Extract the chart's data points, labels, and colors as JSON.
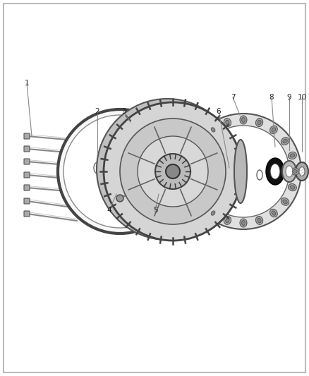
{
  "background_color": "#ffffff",
  "border_color": "#cccccc",
  "fig_width": 4.38,
  "fig_height": 5.33,
  "dpi": 100,
  "line_color": "#888888",
  "dark_gray": "#555555",
  "mid_gray": "#999999",
  "light_gray": "#cccccc",
  "very_light_gray": "#eeeeee",
  "black": "#222222",
  "part_fill": "#d8d8d8",
  "part_edge": "#555555"
}
